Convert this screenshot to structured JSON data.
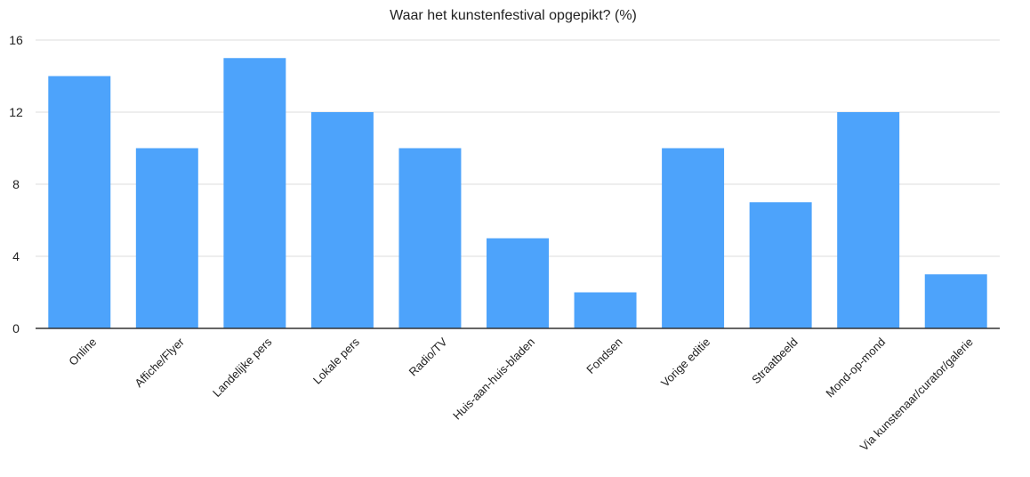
{
  "chart_data": {
    "type": "bar",
    "title": "Waar het kunstenfestival opgepikt? (%)",
    "xlabel": "",
    "ylabel": "",
    "ylim": [
      0,
      16
    ],
    "yticks": [
      0,
      4,
      8,
      12,
      16
    ],
    "grid": true,
    "legend": "none",
    "bar_color": "#4da3fb",
    "categories": [
      "Online",
      "Affiche/Flyer",
      "Landelijke pers",
      "Lokale pers",
      "Radio/TV",
      "Huis-aan-huis-bladen",
      "Fondsen",
      "Vorige editie",
      "Straatbeeld",
      "Mond-op-mond",
      "Via kunstenaar/curator/galerie"
    ],
    "values": [
      14,
      10,
      15,
      12,
      10,
      5,
      2,
      10,
      7,
      12,
      3
    ]
  }
}
